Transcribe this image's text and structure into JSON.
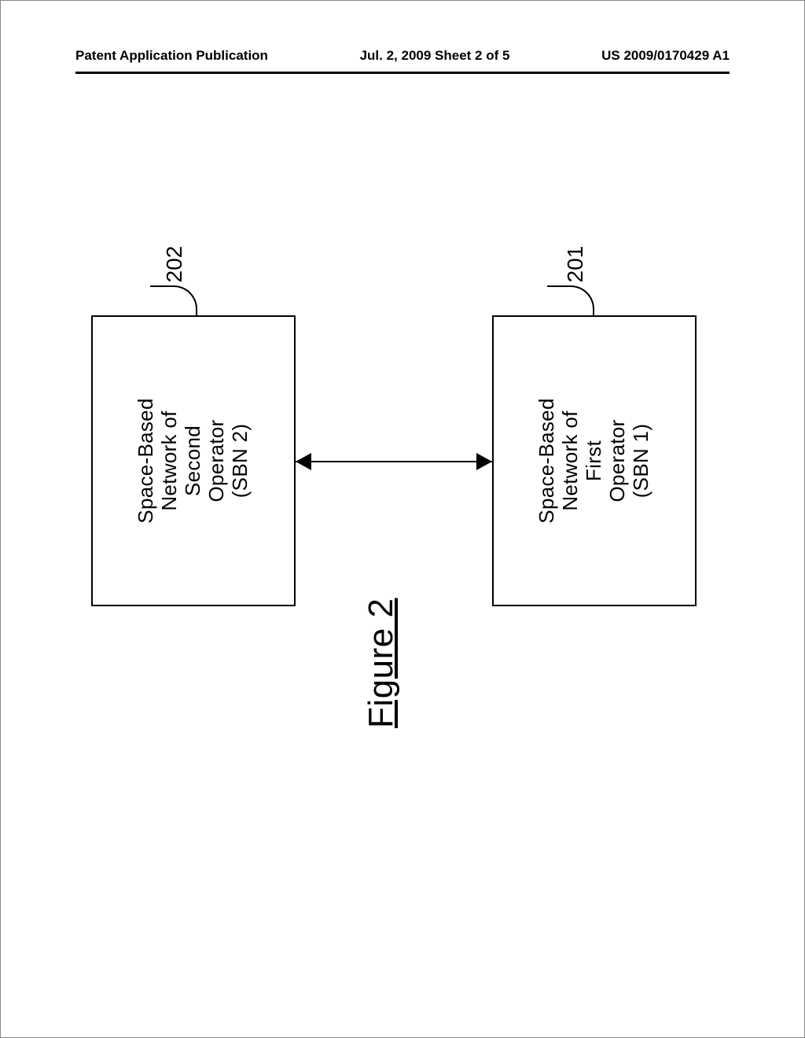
{
  "header": {
    "left": "Patent Application Publication",
    "center": "Jul. 2, 2009  Sheet 2 of 5",
    "right": "US 2009/0170429 A1"
  },
  "figure": {
    "caption": "Figure 2",
    "box1": {
      "line1": "Space-Based",
      "line2": "Network of",
      "line3": "Second",
      "line4": "Operator",
      "line5": "(SBN 2)",
      "ref": "202"
    },
    "box2": {
      "line1": "Space-Based",
      "line2": "Network of",
      "line3": "First",
      "line4": "Operator",
      "line5": "(SBN 1)",
      "ref": "201"
    }
  }
}
